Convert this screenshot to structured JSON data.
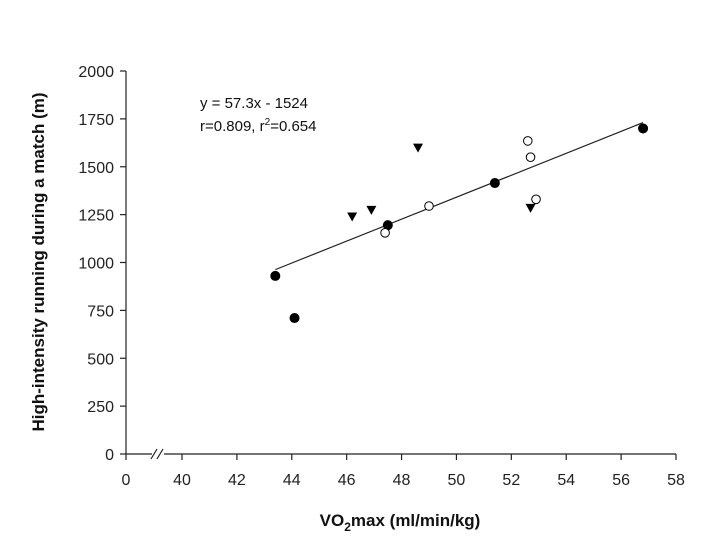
{
  "chart_data": {
    "type": "scatter",
    "xlabel": "VO2max (ml/min/kg)",
    "xlabel_parts": {
      "pre": "VO",
      "sub": "2",
      "post": "max (ml/min/kg)"
    },
    "ylabel": "High-intensity running during a match (m)",
    "x_ticks": [
      0,
      40,
      42,
      44,
      46,
      48,
      50,
      52,
      54,
      56,
      58
    ],
    "x_break": true,
    "xlim": [
      38,
      58
    ],
    "y_ticks": [
      0,
      250,
      500,
      750,
      1000,
      1250,
      1500,
      1750,
      2000
    ],
    "ylim": [
      0,
      2000
    ],
    "series": [
      {
        "name": "filled circles",
        "marker": "filled-circle",
        "points": [
          [
            43.4,
            930
          ],
          [
            44.1,
            710
          ],
          [
            47.5,
            1195
          ],
          [
            51.4,
            1415
          ],
          [
            56.8,
            1700
          ]
        ]
      },
      {
        "name": "open circles",
        "marker": "open-circle",
        "points": [
          [
            47.4,
            1155
          ],
          [
            49.0,
            1295
          ],
          [
            52.6,
            1635
          ],
          [
            52.7,
            1550
          ],
          [
            52.9,
            1330
          ]
        ]
      },
      {
        "name": "filled triangles",
        "marker": "filled-triangle-down",
        "points": [
          [
            46.2,
            1240
          ],
          [
            46.9,
            1275
          ],
          [
            48.6,
            1600
          ],
          [
            52.7,
            1285
          ]
        ]
      }
    ],
    "regression": {
      "slope": 57.3,
      "intercept": -1524,
      "x_start": 43.4,
      "x_end": 56.8
    },
    "annotations": {
      "equation": "y = 57.3x - 1524",
      "stats_pre": "r=0.809, r",
      "stats_sup": "2",
      "stats_post": "=0.654"
    }
  }
}
